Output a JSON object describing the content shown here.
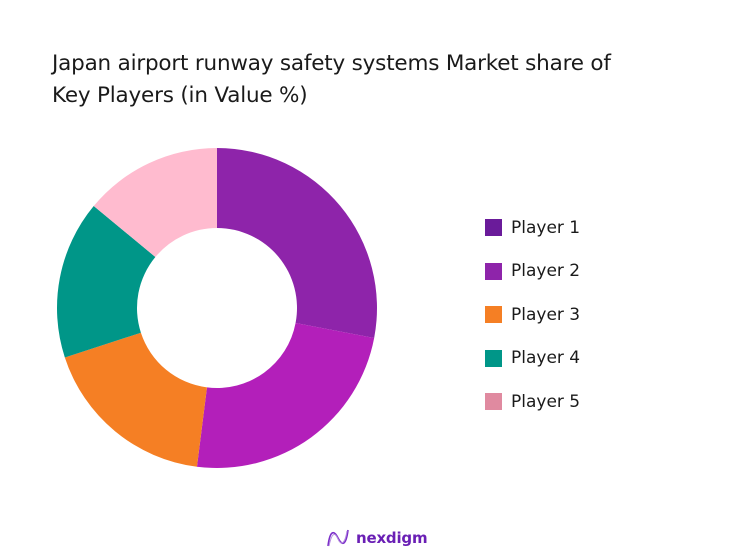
{
  "chart_data": {
    "type": "pie",
    "variant": "donut",
    "title": "Japan airport runway safety systems Market share of Key Players (in Value %)",
    "categories": [
      "Player 1",
      "Player 2",
      "Player 3",
      "Player 4",
      "Player 5"
    ],
    "values": [
      28,
      24,
      18,
      16,
      14
    ],
    "colors": [
      "#8e24aa",
      "#b31fba",
      "#f57f24",
      "#009688",
      "#ffbbcf"
    ],
    "legend_colors": [
      "#6a1b9a",
      "#8e24aa",
      "#f57f24",
      "#009688",
      "#e08aa0"
    ],
    "legend_position": "right",
    "start_angle_deg": 0,
    "direction": "clockwise"
  },
  "title": {
    "line1": "Japan airport runway safety systems Market share of",
    "line2": "Key Players (in Value %)"
  },
  "legend": [
    {
      "label": "Player 1"
    },
    {
      "label": "Player 2"
    },
    {
      "label": "Player 3"
    },
    {
      "label": "Player 4"
    },
    {
      "label": "Player 5"
    }
  ],
  "logo": {
    "text": "nexdigm"
  }
}
